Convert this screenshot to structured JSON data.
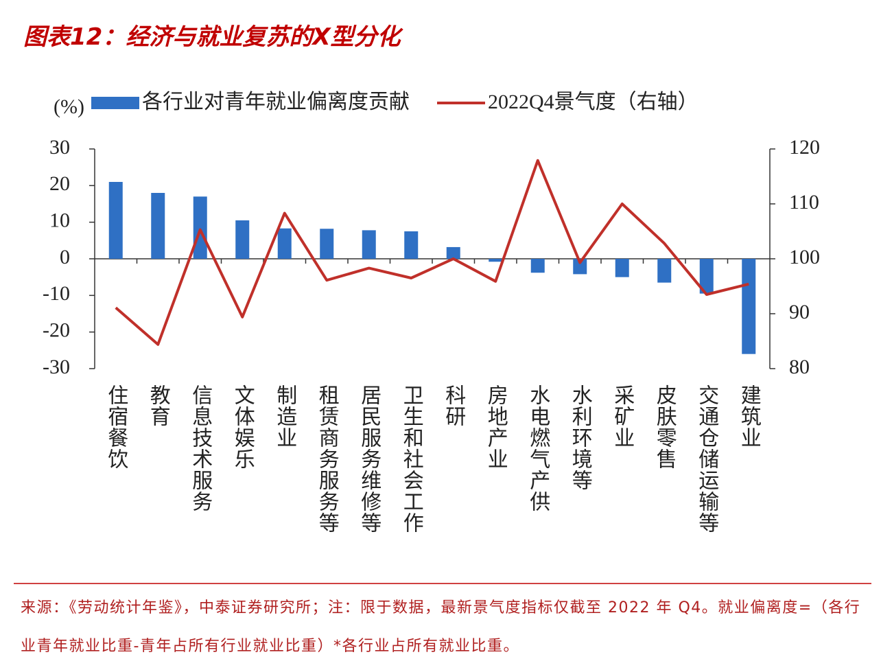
{
  "chart_data": {
    "type": "bar",
    "title": "图表12：经济与就业复苏的X型分化",
    "y_label": "(%)",
    "categories": [
      "住宿餐饮",
      "教育",
      "信息技术服务",
      "文体娱乐",
      "制造业",
      "租赁商务服务等",
      "居民服务维修等",
      "卫生和社会工作",
      "科研",
      "房地产业",
      "水电燃气产供",
      "水利环境等",
      "采矿业",
      "皮肤零售",
      "交通仓储运输等",
      "建筑业"
    ],
    "series": [
      {
        "name": "各行业对青年就业偏离度贡献",
        "type": "bar",
        "color": "#2f70c4",
        "values": [
          21,
          18,
          17,
          10.5,
          8.3,
          8.2,
          7.8,
          7.5,
          3.2,
          -0.8,
          -3.8,
          -4.2,
          -5,
          -6.5,
          -9.5,
          -26
        ]
      },
      {
        "name": "2022Q4景气度（右轴）",
        "type": "line",
        "axis": "y2",
        "color": "#c0302a",
        "values": [
          91.1,
          84.4,
          105.3,
          89.4,
          108.3,
          96.1,
          98.3,
          96.5,
          100,
          95.9,
          117.9,
          99.3,
          110,
          102.8,
          93.5,
          95.4
        ]
      }
    ],
    "ylim": [
      -30,
      30
    ],
    "yticks": [
      -30,
      -20,
      -10,
      0,
      10,
      20,
      30
    ],
    "y2lim": [
      80,
      120
    ],
    "y2ticks": [
      80,
      90,
      100,
      110,
      120
    ],
    "grid": false
  },
  "source": "来源：《劳动统计年鉴》，中泰证券研究所；注：限于数据，最新景气度指标仅截至 2022 年 Q4。就业偏离度=（各行业青年就业比重-青年占所有行业就业比重）*各行业占所有就业比重。"
}
